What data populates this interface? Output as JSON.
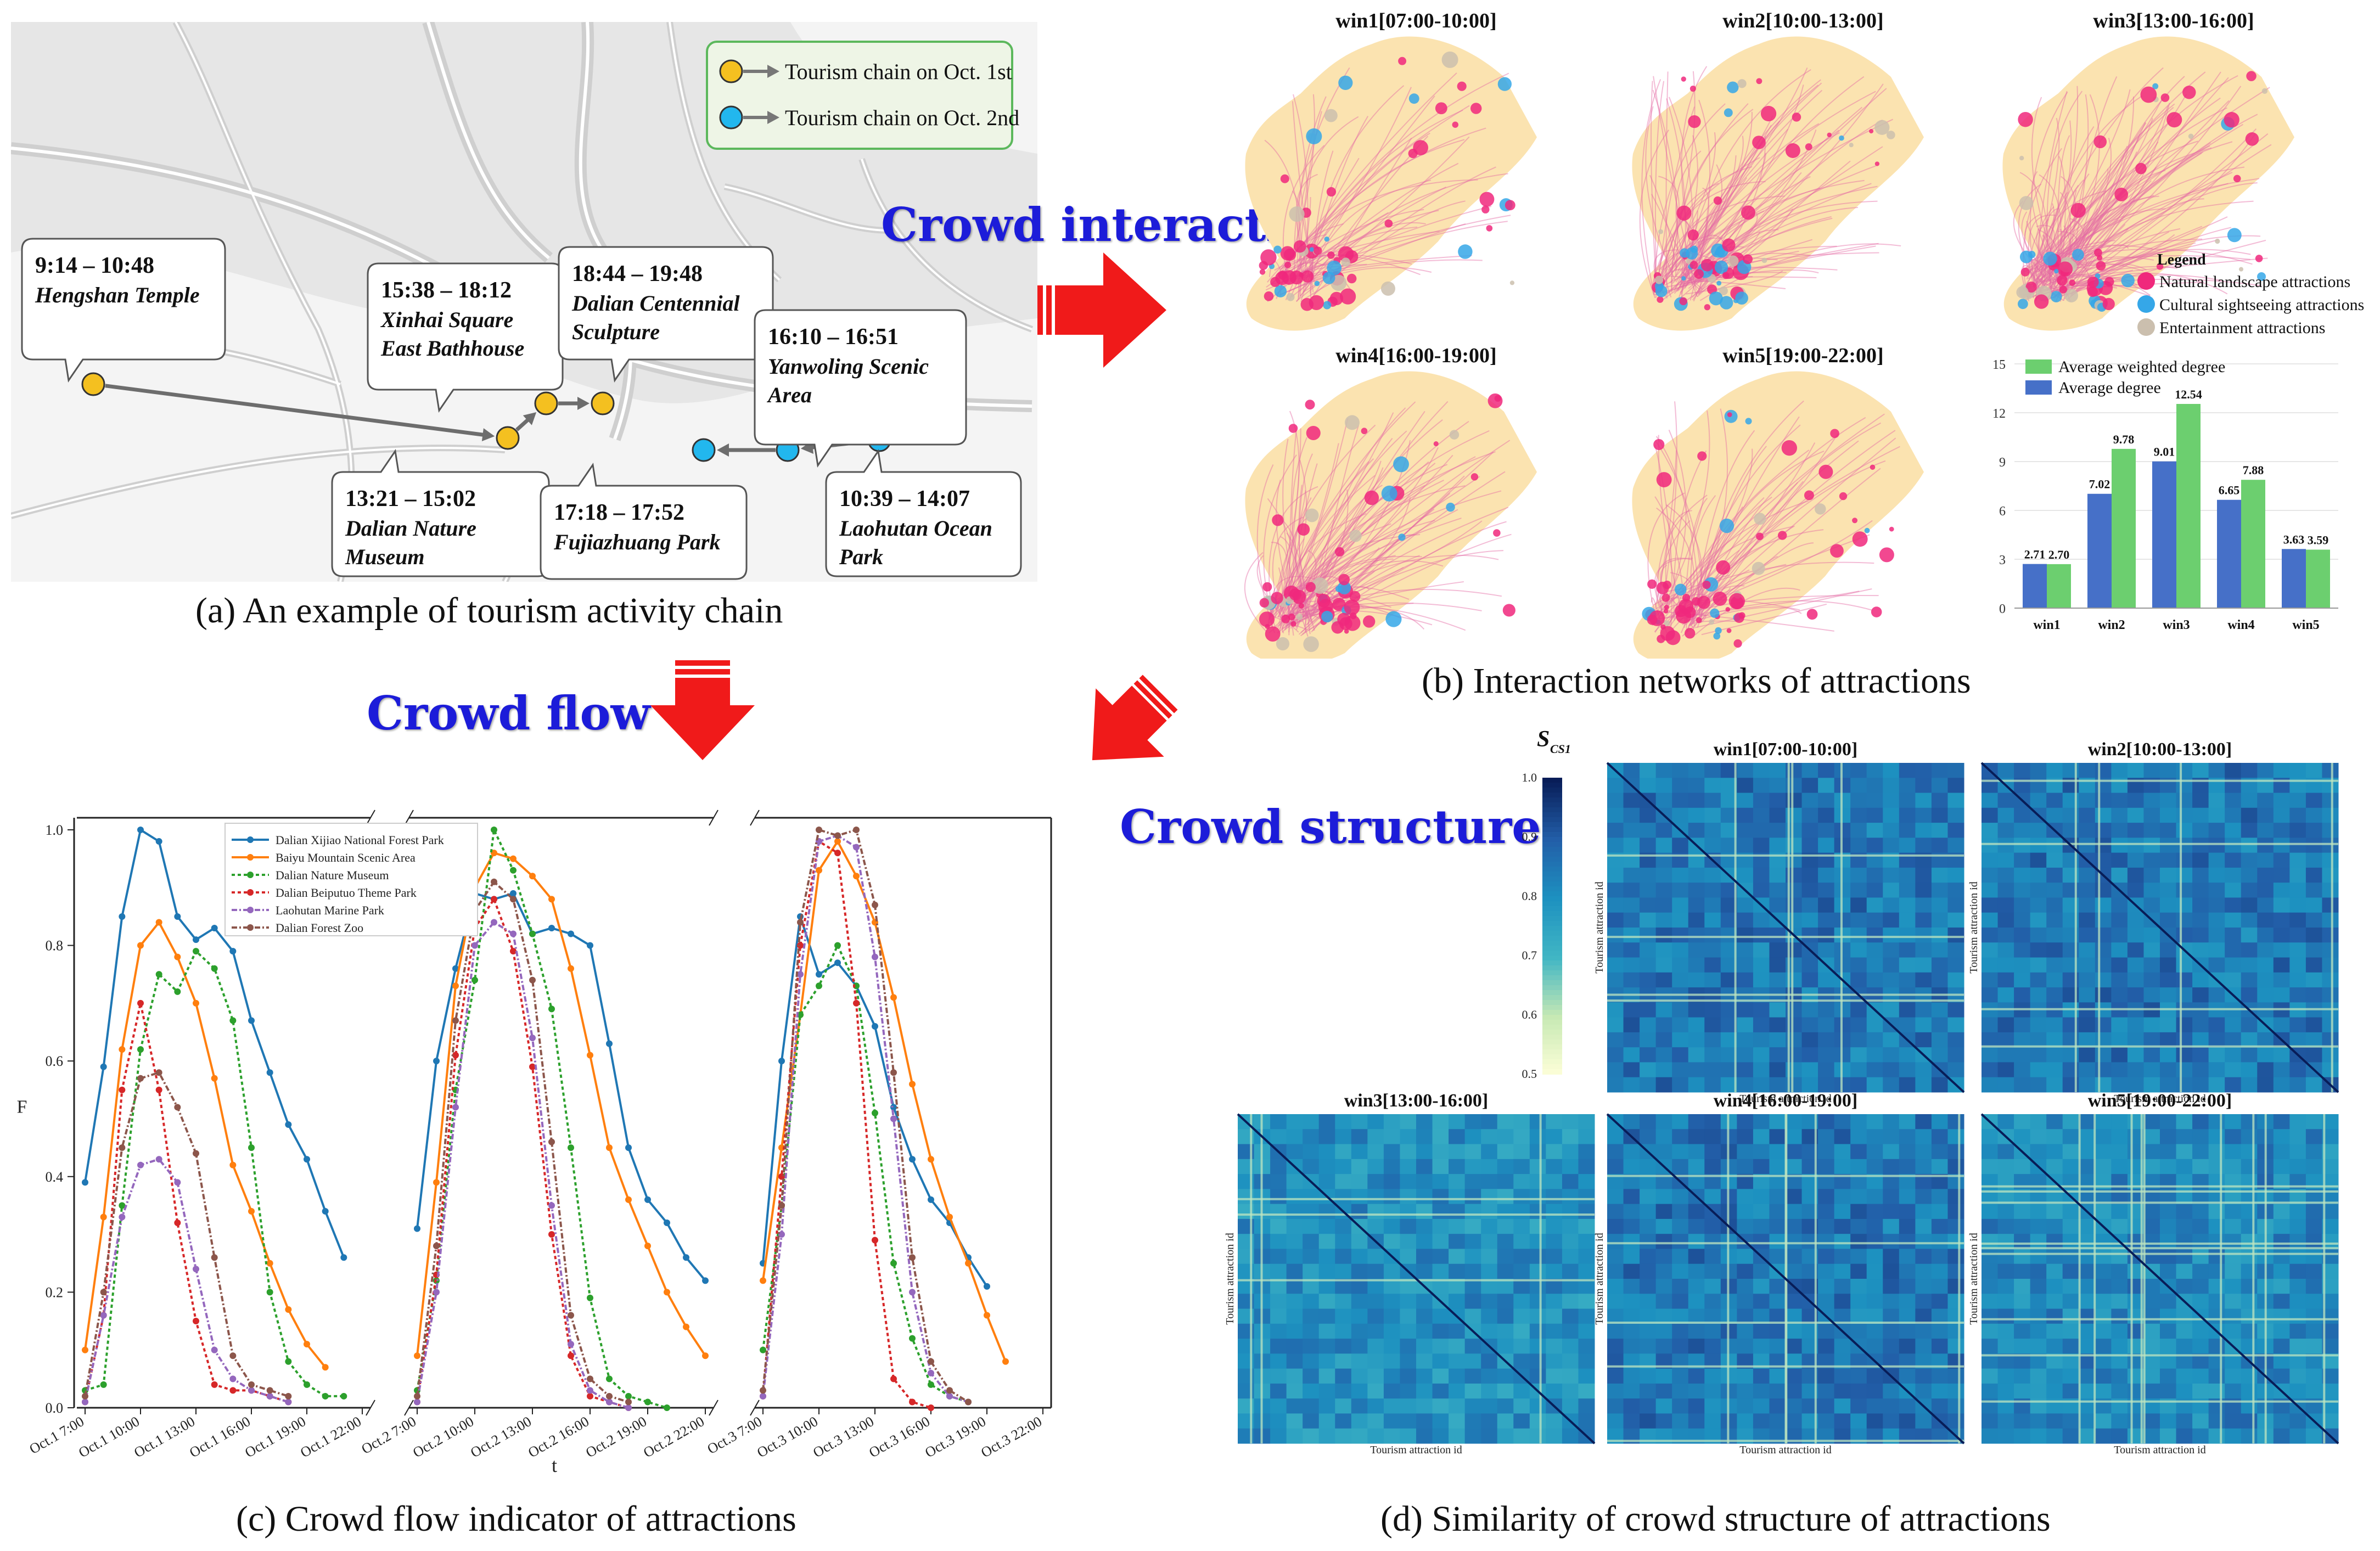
{
  "colors": {
    "chain_oct1": "#f4c020",
    "chain_oct2": "#22b7ee",
    "natural": "#f0287c",
    "cultural": "#35a7e8",
    "entertainment": "#cbbfae",
    "land": "#fbe3b0",
    "avg_weighted": "#6ccf6f",
    "avg_degree": "#4670c8",
    "arrow": "#f01a1a",
    "title_blue": "#1c1cd9"
  },
  "panel_a": {
    "caption": "(a) An example of tourism activity chain",
    "legend": {
      "oct1": "Tourism chain on Oct. 1st",
      "oct2": "Tourism chain on Oct. 2nd"
    },
    "stops": [
      {
        "time": "9:14 – 10:48",
        "place": [
          "Hengshan Temple"
        ]
      },
      {
        "time": "15:38 – 18:12",
        "place": [
          "Xinhai Square",
          "East Bathhouse"
        ]
      },
      {
        "time": "18:44 – 19:48",
        "place": [
          "Dalian Centennial",
          "Sculpture"
        ]
      },
      {
        "time": "16:10 – 16:51",
        "place": [
          "Yanwoling Scenic",
          "Area"
        ]
      },
      {
        "time": "13:21 – 15:02",
        "place": [
          "Dalian Nature",
          "Museum"
        ]
      },
      {
        "time": "17:18 – 17:52",
        "place": [
          "Fujiazhuang Park"
        ]
      },
      {
        "time": "10:39 – 14:07",
        "place": [
          "Laohutan Ocean",
          "Park"
        ]
      }
    ]
  },
  "labels": {
    "crowd_interaction": "Crowd interaction",
    "crowd_flow": "Crowd flow",
    "crowd_structure": "Crowd structure"
  },
  "panel_b": {
    "caption": "(b) Interaction networks of attractions",
    "windows": [
      "win1[07:00-10:00]",
      "win2[10:00-13:00]",
      "win3[13:00-16:00]",
      "win4[16:00-19:00]",
      "win5[19:00-22:00]"
    ],
    "legend": {
      "title": "Legend",
      "items": [
        "Natural landscape attractions",
        "Cultural sightseeing attractions",
        "Entertainment attractions"
      ]
    }
  },
  "chart_data": [
    {
      "type": "bar",
      "categories": [
        "win1",
        "win2",
        "win3",
        "win4",
        "win5"
      ],
      "series": [
        {
          "name": "Average degree",
          "values": [
            2.71,
            7.02,
            9.01,
            6.65,
            3.63
          ],
          "color": "#4670c8"
        },
        {
          "name": "Average weighted degree",
          "values": [
            2.7,
            9.78,
            12.54,
            7.88,
            3.59
          ],
          "color": "#6ccf6f"
        }
      ],
      "value_labels": [
        [
          "2.71",
          "7.02",
          "9.01",
          "6.65",
          "3.63"
        ],
        [
          "2.70",
          "9.78",
          "12.54",
          "7.88",
          "3.59"
        ]
      ],
      "ylim": [
        0,
        15
      ],
      "yticks": [
        "0",
        "3",
        "6",
        "9",
        "12",
        "15"
      ],
      "legend_position": "top-left"
    },
    {
      "type": "line",
      "caption": "(c) Crowd flow indicator of attractions",
      "xlabel": "t",
      "ylabel": "F",
      "ylim": [
        0,
        1.0
      ],
      "yticks": [
        "0.0",
        "0.2",
        "0.4",
        "0.6",
        "0.8",
        "1.0"
      ],
      "xticks": [
        "Oct.1 7:00",
        "Oct.1 10:00",
        "Oct.1 13:00",
        "Oct.1 16:00",
        "Oct.1 19:00",
        "Oct.1 22:00",
        "Oct.2 7:00",
        "Oct.2 10:00",
        "Oct.2 13:00",
        "Oct.2 16:00",
        "Oct.2 19:00",
        "Oct.2 22:00",
        "Oct.3 7:00",
        "Oct.3 10:00",
        "Oct.3 13:00",
        "Oct.3 16:00",
        "Oct.3 19:00",
        "Oct.3 22:00"
      ],
      "segments": 3,
      "hours": [
        7,
        8,
        9,
        10,
        11,
        12,
        13,
        14,
        15,
        16,
        17,
        18,
        19,
        20,
        21,
        22
      ],
      "legend_position": "top-left",
      "series": [
        {
          "name": "Dalian Xijiao National Forest Park",
          "color": "#1f77b4",
          "marker": "o",
          "dash": "",
          "values": [
            [
              0.39,
              0.59,
              0.85,
              1.0,
              0.98,
              0.85,
              0.81,
              0.83,
              0.79,
              0.67,
              0.58,
              0.49,
              0.43,
              0.34,
              0.26
            ],
            [
              0.31,
              0.6,
              0.76,
              0.89,
              0.88,
              0.89,
              0.82,
              0.83,
              0.82,
              0.8,
              0.63,
              0.45,
              0.36,
              0.32,
              0.26,
              0.22
            ],
            [
              0.25,
              0.6,
              0.85,
              0.75,
              0.77,
              0.73,
              0.66,
              0.52,
              0.43,
              0.36,
              0.32,
              0.26,
              0.21
            ]
          ]
        },
        {
          "name": "Baiyu Mountain Scenic Area",
          "color": "#ff7f0e",
          "marker": "o",
          "dash": "",
          "values": [
            [
              0.1,
              0.33,
              0.62,
              0.8,
              0.84,
              0.78,
              0.7,
              0.57,
              0.42,
              0.34,
              0.25,
              0.17,
              0.11,
              0.07
            ],
            [
              0.09,
              0.39,
              0.73,
              0.9,
              0.96,
              0.95,
              0.92,
              0.88,
              0.76,
              0.61,
              0.45,
              0.36,
              0.28,
              0.2,
              0.14,
              0.09
            ],
            [
              0.22,
              0.45,
              0.68,
              0.93,
              0.98,
              0.92,
              0.84,
              0.71,
              0.56,
              0.43,
              0.33,
              0.25,
              0.16,
              0.08
            ]
          ]
        },
        {
          "name": "Dalian Nature Museum",
          "color": "#2ca02c",
          "marker": "o",
          "dash": "6,5",
          "values": [
            [
              0.03,
              0.04,
              0.35,
              0.62,
              0.75,
              0.72,
              0.79,
              0.76,
              0.67,
              0.45,
              0.2,
              0.08,
              0.04,
              0.02,
              0.02
            ],
            [
              0.03,
              0.22,
              0.55,
              0.74,
              1.0,
              0.93,
              0.82,
              0.69,
              0.45,
              0.19,
              0.05,
              0.02,
              0.01,
              0.0
            ],
            [
              0.1,
              0.35,
              0.68,
              0.73,
              0.8,
              0.73,
              0.51,
              0.25,
              0.12,
              0.04,
              0.02,
              0.01
            ]
          ]
        },
        {
          "name": "Dalian Beiputuo Theme Park",
          "color": "#d62728",
          "marker": "o",
          "dash": "6,5",
          "values": [
            [
              0.01,
              0.16,
              0.55,
              0.7,
              0.55,
              0.32,
              0.15,
              0.04,
              0.03,
              0.03,
              0.02,
              0.01
            ],
            [
              0.01,
              0.23,
              0.61,
              0.83,
              0.88,
              0.79,
              0.59,
              0.3,
              0.09,
              0.02,
              0.01,
              0.0
            ],
            [
              0.02,
              0.4,
              0.8,
              0.98,
              0.96,
              0.7,
              0.29,
              0.05,
              0.01,
              0.0
            ]
          ]
        },
        {
          "name": "Laohutan Marine Park",
          "color": "#9467bd",
          "marker": "o",
          "dash": "10,4,3,4",
          "values": [
            [
              0.01,
              0.16,
              0.33,
              0.42,
              0.43,
              0.39,
              0.24,
              0.1,
              0.05,
              0.03,
              0.02,
              0.01
            ],
            [
              0.01,
              0.2,
              0.52,
              0.8,
              0.84,
              0.82,
              0.64,
              0.35,
              0.11,
              0.03,
              0.01,
              0.0
            ],
            [
              0.02,
              0.3,
              0.75,
              0.98,
              0.99,
              0.97,
              0.78,
              0.5,
              0.2,
              0.06,
              0.02,
              0.01
            ]
          ]
        },
        {
          "name": "Dalian Forest Zoo",
          "color": "#8c564b",
          "marker": "o",
          "dash": "10,4,3,4",
          "values": [
            [
              0.02,
              0.2,
              0.45,
              0.57,
              0.58,
              0.52,
              0.44,
              0.26,
              0.09,
              0.04,
              0.03,
              0.02
            ],
            [
              0.02,
              0.28,
              0.67,
              0.86,
              0.91,
              0.88,
              0.74,
              0.46,
              0.16,
              0.05,
              0.02,
              0.01
            ],
            [
              0.03,
              0.35,
              0.84,
              1.0,
              0.99,
              1.0,
              0.87,
              0.58,
              0.26,
              0.08,
              0.03,
              0.01
            ]
          ]
        }
      ]
    },
    {
      "type": "heatmap",
      "caption": "(d) Similarity of crowd structure of attractions",
      "colorbar_title": "S",
      "colorbar_sub": "CS1",
      "colorbar_ticks": [
        "1.0",
        "0.9",
        "0.8",
        "0.7",
        "0.6",
        "0.5"
      ],
      "range": [
        0.5,
        1.0
      ],
      "windows": [
        "win1[07:00-10:00]",
        "win2[10:00-13:00]",
        "win3[13:00-16:00]",
        "win4[16:00-19:00]",
        "win5[19:00-22:00]"
      ],
      "xlabel": "Tourism attraction id",
      "ylabel": "Tourism attraction id"
    }
  ]
}
